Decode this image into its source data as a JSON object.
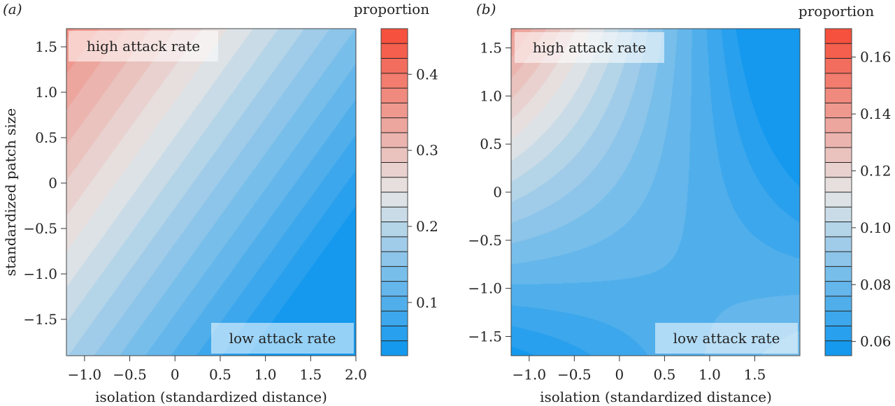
{
  "chart_data": [
    {
      "type": "heatmap",
      "panel_label": "(a)",
      "xlabel": "isolation (standardized distance)",
      "ylabel": "standardized patch size",
      "xlim": [
        -1.2,
        2.0
      ],
      "ylim": [
        -1.9,
        1.7
      ],
      "xticks": [
        {
          "value": -1.0,
          "label": "−1.0"
        },
        {
          "value": -0.5,
          "label": "−0.5"
        },
        {
          "value": 0,
          "label": "0"
        },
        {
          "value": 0.5,
          "label": "0.5"
        },
        {
          "value": 1.0,
          "label": "1.0"
        },
        {
          "value": 1.5,
          "label": "1.5"
        },
        {
          "value": 2.0,
          "label": "2.0"
        }
      ],
      "yticks": [
        {
          "value": 1.5,
          "label": "1.5"
        },
        {
          "value": 1.0,
          "label": "1.0"
        },
        {
          "value": 0.5,
          "label": "0.5"
        },
        {
          "value": 0,
          "label": "0"
        },
        {
          "value": -0.5,
          "label": "−0.5"
        },
        {
          "value": -1.0,
          "label": "−1.0"
        },
        {
          "value": -1.5,
          "label": "−1.5"
        }
      ],
      "value_range": [
        0.03,
        0.46
      ],
      "model": {
        "form": "linear",
        "intercept": 0.2,
        "isolation_coef": -0.069,
        "patch_size_coef": 0.05
      },
      "contour_levels": 22,
      "annotations": [
        {
          "text": "high attack rate",
          "at": [
            -1.2,
            1.7
          ],
          "anchor": "top-left"
        },
        {
          "text": "low attack rate",
          "at": [
            2.0,
            -1.9
          ],
          "anchor": "bottom-right"
        }
      ],
      "legend": {
        "title": "proportion",
        "ticks": [
          {
            "value": 0.1,
            "label": "0.1"
          },
          {
            "value": 0.2,
            "label": "0.2"
          },
          {
            "value": 0.3,
            "label": "0.3"
          },
          {
            "value": 0.4,
            "label": "0.4"
          }
        ]
      },
      "colors": {
        "low": "#0a95ee",
        "mid": "#e6e6e6",
        "high": "#f74a36"
      },
      "grid": false
    },
    {
      "type": "heatmap",
      "panel_label": "(b)",
      "xlabel": "isolation (standardized distance)",
      "ylabel": "",
      "xlim": [
        -1.2,
        2.0
      ],
      "ylim": [
        -1.7,
        1.7
      ],
      "xticks": [
        {
          "value": -1.0,
          "label": "−1.0"
        },
        {
          "value": -0.5,
          "label": "−0.5"
        },
        {
          "value": 0,
          "label": "0"
        },
        {
          "value": 0.5,
          "label": "0.5"
        },
        {
          "value": 1.0,
          "label": "1.0"
        },
        {
          "value": 1.5,
          "label": "1.5"
        }
      ],
      "yticks": [
        {
          "value": 1.5,
          "label": "1.5"
        },
        {
          "value": 1.0,
          "label": "1.0"
        },
        {
          "value": 0.5,
          "label": "0.5"
        },
        {
          "value": 0,
          "label": "0"
        },
        {
          "value": -0.5,
          "label": "−0.5"
        },
        {
          "value": -1.0,
          "label": "−1.0"
        },
        {
          "value": -1.5,
          "label": "−1.5"
        }
      ],
      "value_range": [
        0.055,
        0.17
      ],
      "model": {
        "form": "interaction",
        "intercept": 0.085,
        "isolation_coef": -0.012,
        "patch_size_coef": 0.01,
        "interaction_coef": -0.012
      },
      "contour_levels": 22,
      "annotations": [
        {
          "text": "high attack rate",
          "at": [
            -1.2,
            1.7
          ],
          "anchor": "top-left"
        },
        {
          "text": "low attack rate",
          "at": [
            2.0,
            -1.7
          ],
          "anchor": "bottom-right"
        }
      ],
      "legend": {
        "title": "proportion",
        "ticks": [
          {
            "value": 0.06,
            "label": "0.06"
          },
          {
            "value": 0.08,
            "label": "0.08"
          },
          {
            "value": 0.1,
            "label": "0.10"
          },
          {
            "value": 0.12,
            "label": "0.12"
          },
          {
            "value": 0.14,
            "label": "0.14"
          },
          {
            "value": 0.16,
            "label": "0.16"
          }
        ]
      },
      "colors": {
        "low": "#0a95ee",
        "mid": "#e6e6e6",
        "high": "#f74a36"
      },
      "grid": false
    }
  ]
}
